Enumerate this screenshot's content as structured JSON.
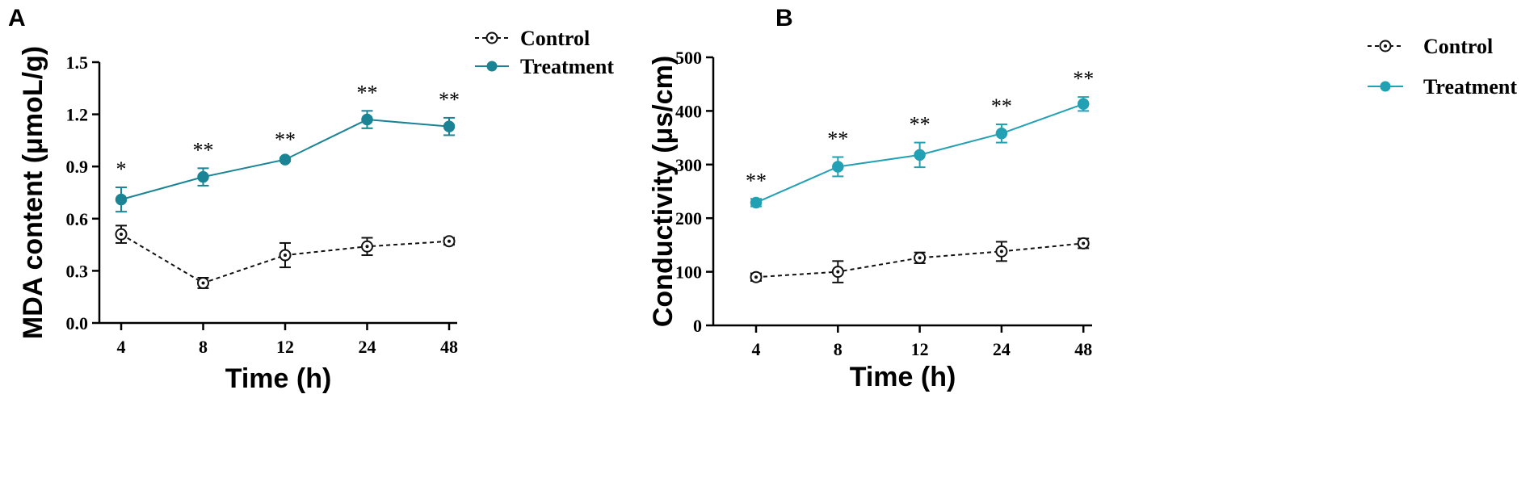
{
  "chart_data": [
    {
      "panel": "A",
      "type": "line",
      "xlabel": "Time (h)",
      "ylabel": "MDA content (μmoL/g)",
      "categories": [
        "4",
        "8",
        "12",
        "24",
        "48"
      ],
      "ylim": [
        0,
        1.5
      ],
      "yticks": [
        0.0,
        0.3,
        0.6,
        0.9,
        1.2,
        1.5
      ],
      "ytick_labels": [
        "0.0",
        "0.3",
        "0.6",
        "0.9",
        "1.2",
        "1.5"
      ],
      "legend_position": "top-right",
      "series": [
        {
          "name": "Control",
          "style": "dashed",
          "color": "#111111",
          "marker": "open-circle",
          "values": [
            0.51,
            0.23,
            0.39,
            0.44,
            0.47
          ],
          "errors": [
            0.05,
            0.03,
            0.07,
            0.05,
            0.02
          ]
        },
        {
          "name": "Treatment",
          "style": "solid",
          "color": "#1a8494",
          "marker": "filled-circle",
          "values": [
            0.71,
            0.84,
            0.94,
            1.17,
            1.13
          ],
          "errors": [
            0.07,
            0.05,
            0.01,
            0.05,
            0.05
          ]
        }
      ],
      "significance": [
        "*",
        "**",
        "**",
        "**",
        "**"
      ]
    },
    {
      "panel": "B",
      "type": "line",
      "xlabel": "Time (h)",
      "ylabel": "Conductivity (μs/cm)",
      "categories": [
        "4",
        "8",
        "12",
        "24",
        "48"
      ],
      "ylim": [
        0,
        500
      ],
      "yticks": [
        0,
        100,
        200,
        300,
        400,
        500
      ],
      "ytick_labels": [
        "0",
        "100",
        "200",
        "300",
        "400",
        "500"
      ],
      "legend_position": "top-right",
      "series": [
        {
          "name": "Control",
          "style": "dashed",
          "color": "#111111",
          "marker": "open-circle-dot",
          "values": [
            90,
            100,
            126,
            138,
            153
          ],
          "errors": [
            7,
            20,
            10,
            18,
            9
          ]
        },
        {
          "name": "Treatment",
          "style": "solid",
          "color": "#22a0b4",
          "marker": "filled-circle",
          "values": [
            229,
            296,
            318,
            358,
            413
          ],
          "errors": [
            7,
            18,
            23,
            17,
            13
          ]
        }
      ],
      "significance": [
        "**",
        "**",
        "**",
        "**",
        "**"
      ]
    }
  ]
}
